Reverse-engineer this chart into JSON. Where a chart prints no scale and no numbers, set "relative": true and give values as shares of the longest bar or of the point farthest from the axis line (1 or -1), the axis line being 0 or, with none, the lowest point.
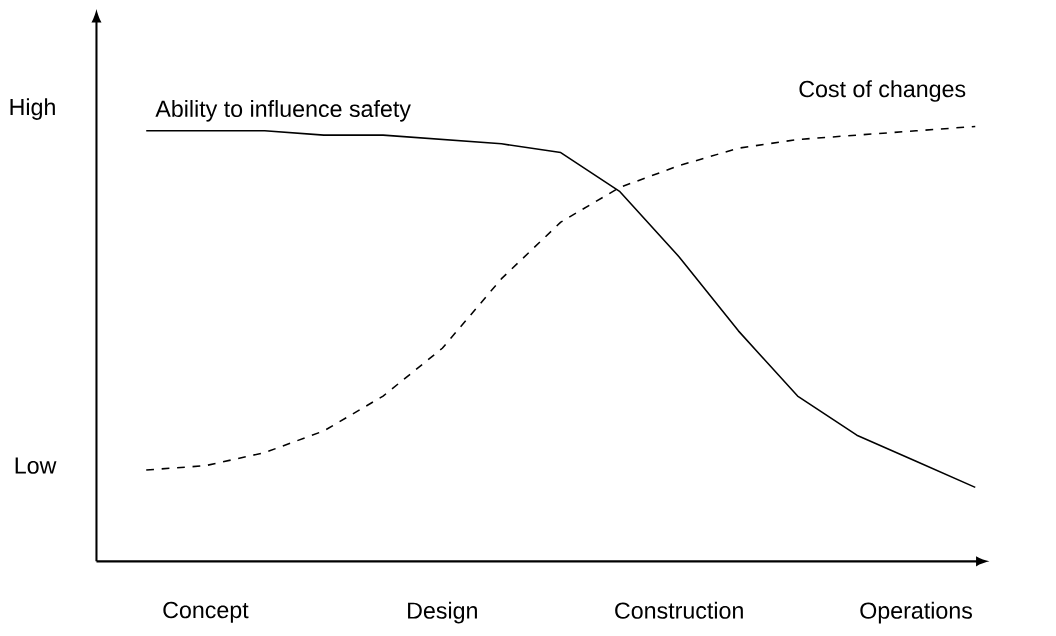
{
  "chart_data": {
    "type": "line",
    "relative": true,
    "categories": [
      null,
      "Concept",
      null,
      null,
      null,
      "Design",
      null,
      null,
      null,
      "Construction",
      null,
      null,
      null,
      "Operations",
      null
    ],
    "annotations": [
      "High",
      "Low"
    ],
    "grid": false,
    "legend": false,
    "marker": "none",
    "series": [
      {
        "name": "Ability to influence safety",
        "color": "#000000",
        "line_style": "solid",
        "values": [
          0.99,
          0.99,
          0.99,
          0.98,
          0.98,
          0.97,
          0.96,
          0.94,
          0.85,
          0.7,
          0.53,
          0.38,
          0.29,
          0.23,
          0.17
        ]
      },
      {
        "name": "Cost of changes",
        "color": "#000000",
        "line_style": "dashed",
        "values": [
          0.21,
          0.22,
          0.25,
          0.3,
          0.38,
          0.49,
          0.65,
          0.78,
          0.86,
          0.91,
          0.95,
          0.97,
          0.98,
          0.99,
          1.0
        ]
      }
    ]
  }
}
